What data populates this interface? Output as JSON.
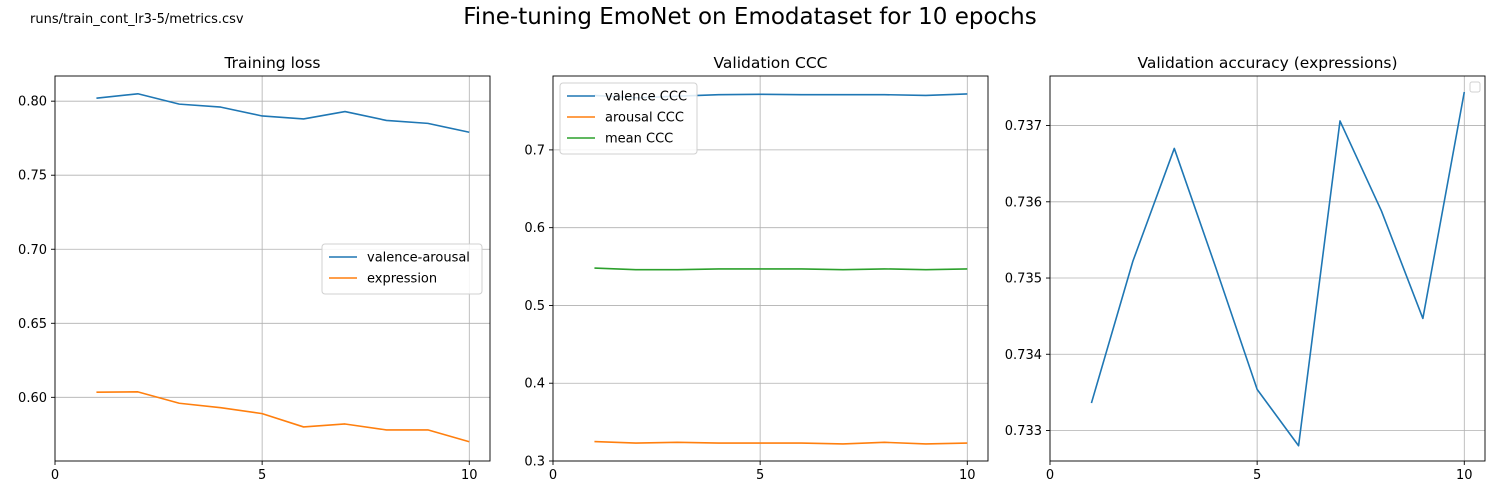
{
  "figure": {
    "file_label": "runs/train_cont_lr3-5/metrics.csv",
    "suptitle": "Fine-tuning EmoNet on Emodataset for 10 epochs"
  },
  "colors": {
    "blue": "#1f77b4",
    "orange": "#ff7f0e",
    "green": "#2ca02c",
    "grid": "#b0b0b0"
  },
  "chart_data": [
    {
      "type": "line",
      "title": "Training loss",
      "xlabel": "",
      "ylabel": "",
      "xlim": [
        0,
        10.5
      ],
      "ylim": [
        0.557,
        0.817
      ],
      "xticks": [
        0,
        5,
        10
      ],
      "yticks": [
        0.6,
        0.65,
        0.7,
        0.75,
        0.8
      ],
      "ytick_labels": [
        "0.60",
        "0.65",
        "0.70",
        "0.75",
        "0.80"
      ],
      "grid": true,
      "legend": "center-right",
      "x": [
        1,
        2,
        3,
        4,
        5,
        6,
        7,
        8,
        9,
        10
      ],
      "series": [
        {
          "name": "valence-arousal",
          "color": "#1f77b4",
          "values": [
            0.802,
            0.805,
            0.798,
            0.796,
            0.79,
            0.788,
            0.793,
            0.787,
            0.785,
            0.779
          ]
        },
        {
          "name": "expression",
          "color": "#ff7f0e",
          "values": [
            0.6035,
            0.6037,
            0.596,
            0.593,
            0.589,
            0.58,
            0.582,
            0.578,
            0.578,
            0.57
          ]
        }
      ]
    },
    {
      "type": "line",
      "title": "Validation CCC",
      "xlabel": "",
      "ylabel": "",
      "xlim": [
        0,
        10.5
      ],
      "ylim": [
        0.3,
        0.795
      ],
      "xticks": [
        0,
        5,
        10
      ],
      "yticks": [
        0.3,
        0.4,
        0.5,
        0.6,
        0.7
      ],
      "ytick_labels": [
        "0.3",
        "0.4",
        "0.5",
        "0.6",
        "0.7"
      ],
      "grid": true,
      "legend": "top-left",
      "x": [
        1,
        2,
        3,
        4,
        5,
        6,
        7,
        8,
        9,
        10
      ],
      "series": [
        {
          "name": "valence CCC",
          "color": "#1f77b4",
          "values": [
            0.77,
            0.767,
            0.769,
            0.771,
            0.7715,
            0.771,
            0.771,
            0.771,
            0.77,
            0.772
          ]
        },
        {
          "name": "arousal CCC",
          "color": "#ff7f0e",
          "values": [
            0.325,
            0.323,
            0.324,
            0.323,
            0.323,
            0.323,
            0.322,
            0.324,
            0.322,
            0.323
          ]
        },
        {
          "name": "mean CCC",
          "color": "#2ca02c",
          "values": [
            0.548,
            0.546,
            0.546,
            0.547,
            0.547,
            0.547,
            0.546,
            0.547,
            0.546,
            0.547
          ]
        }
      ]
    },
    {
      "type": "line",
      "title": "Validation accuracy (expressions)",
      "xlabel": "",
      "ylabel": "",
      "xlim": [
        0,
        10.5
      ],
      "ylim": [
        0.7326,
        0.73765
      ],
      "xticks": [
        0,
        5,
        10
      ],
      "yticks": [
        0.733,
        0.734,
        0.735,
        0.736,
        0.737
      ],
      "ytick_labels": [
        "0.733",
        "0.734",
        "0.735",
        "0.736",
        "0.737"
      ],
      "grid": true,
      "legend": "top-right (empty)",
      "x": [
        1,
        2,
        3,
        4,
        5,
        6,
        7,
        8,
        9,
        10
      ],
      "series": [
        {
          "color": "#1f77b4",
          "values": [
            0.73336,
            0.73522,
            0.7367,
            0.73514,
            0.73354,
            0.7328,
            0.73706,
            0.73588,
            0.73447,
            0.73744
          ]
        }
      ]
    }
  ]
}
